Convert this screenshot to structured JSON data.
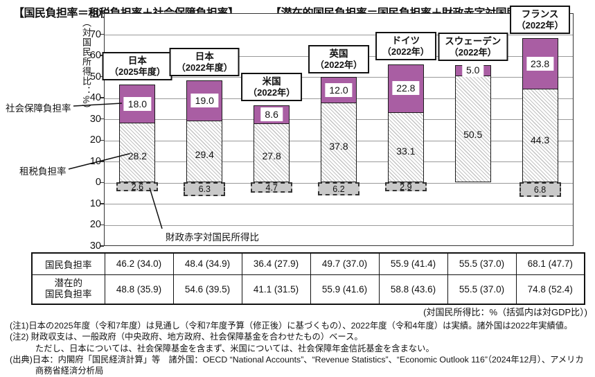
{
  "titles": {
    "left": "【国民負担率＝租税負担率＋社会保障負担率】",
    "right": "【潜在的国民負担率＝国民負担率＋財政赤字対国民所得比】"
  },
  "chart_data": {
    "type": "bar",
    "stacked": true,
    "ylabel": "（対国民所得比：%）",
    "ylim": [
      -30,
      80
    ],
    "ytick_interval": 10,
    "grid": true,
    "series_names": {
      "social": "社会保障負担率",
      "tax": "租税負担率",
      "deficit": "財政赤字対国民所得比"
    },
    "colors": {
      "social": "#a95ea3",
      "tax_hatch": "#c3c3c3",
      "deficit_fill": "#c9c9c9"
    },
    "bars": [
      {
        "label": "日本",
        "sub": "（2025年度）",
        "social": 18.0,
        "tax": 28.2,
        "deficit": 2.6,
        "total": 46.2
      },
      {
        "label": "日本",
        "sub": "（2022年度）",
        "social": 19.0,
        "tax": 29.4,
        "deficit": 6.3,
        "total": 48.4
      },
      {
        "label": "米国",
        "sub": "（2022年）",
        "social": 8.6,
        "tax": 27.8,
        "deficit": 4.7,
        "total": 36.4
      },
      {
        "label": "英国",
        "sub": "（2022年）",
        "social": 12.0,
        "tax": 37.8,
        "deficit": 6.2,
        "total": 49.7
      },
      {
        "label": "ドイツ",
        "sub": "（2022年）",
        "social": 22.8,
        "tax": 33.1,
        "deficit": 2.9,
        "total": 55.9
      },
      {
        "label": "スウェーデン",
        "sub": "（2022年）",
        "social": 5.0,
        "tax": 50.5,
        "deficit": 0,
        "total": 55.5
      },
      {
        "label": "フランス",
        "sub": "（2022年）",
        "social": 23.8,
        "tax": 44.3,
        "deficit": 6.8,
        "total": 68.1
      }
    ]
  },
  "annotations": {
    "social": "社会保障負担率",
    "tax": "租税負担率",
    "deficit": "財政赤字対国民所得比"
  },
  "table": {
    "rows": [
      {
        "label": "国民負担率",
        "values": [
          "46.2 (34.0)",
          "48.4 (34.9)",
          "36.4 (27.9)",
          "49.7 (37.0)",
          "55.9 (41.4)",
          "55.5 (37.0)",
          "68.1 (47.7)"
        ]
      },
      {
        "label": "潜在的\n国民負担率",
        "values": [
          "48.8 (35.9)",
          "54.6 (39.5)",
          "41.1 (31.5)",
          "55.9 (41.6)",
          "58.8 (43.6)",
          "55.5 (37.0)",
          "74.8 (52.4)"
        ]
      }
    ],
    "caption": "(対国民所得比：%（括弧内は対GDP比）)"
  },
  "notes": [
    "(注1)日本の2025年度（令和7年度）は見通し（令和7年度予算（修正後）に基づくもの）、2022年度（令和4年度）は実績。諸外国は2022年実績値。",
    "(注2) 財政収支は、一般政府（中央政府、地方政府、社会保障基金を合わせたもの）ベース。",
    "　　　ただし、日本については、社会保障基金を含まず、米国については、社会保障年金信託基金を含まない。",
    "(出典)日本：内閣府「国民経済計算」等　諸外国：OECD “National Accounts”、“Revenue Statistics”、“Economic Outlook 116”（2024年12月）、アメリカ",
    "　　　商務省経済分析局"
  ]
}
